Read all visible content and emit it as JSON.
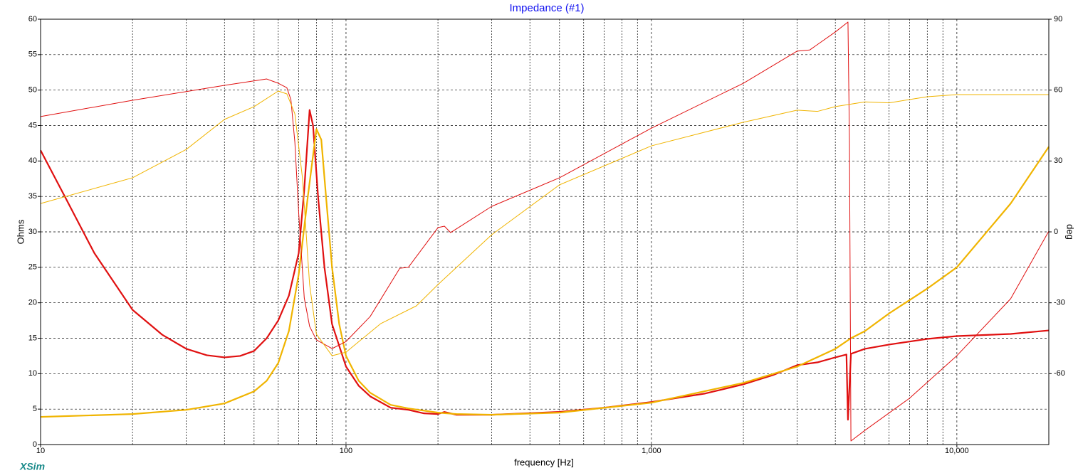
{
  "chart_data": {
    "type": "line",
    "title": "Impedance (#1)",
    "xlabel": "frequency [Hz]",
    "ylabel": "Ohms",
    "y2label": "deg",
    "logo": "XSim",
    "xscale": "log",
    "xlim": [
      10,
      20000
    ],
    "xticks": [
      10,
      100,
      {
        "value": 1000,
        "label": "1,000"
      },
      {
        "value": 10000,
        "label": "10,000"
      }
    ],
    "xminorticks": [
      20,
      30,
      40,
      50,
      60,
      70,
      80,
      90,
      200,
      300,
      400,
      500,
      600,
      700,
      800,
      900,
      2000,
      3000,
      4000,
      5000,
      6000,
      7000,
      8000,
      9000
    ],
    "ylim": [
      0,
      60
    ],
    "yticks": [
      0,
      5,
      10,
      15,
      20,
      25,
      30,
      35,
      40,
      45,
      50,
      55,
      60
    ],
    "y2lim": [
      -90,
      90
    ],
    "y2ticks": [
      -60,
      -30,
      0,
      30,
      60,
      90
    ],
    "grid": true,
    "series": [
      {
        "color": "#e01010",
        "width": 2.2,
        "x": [
          10,
          12,
          15,
          20,
          25,
          30,
          35,
          40,
          45,
          50,
          55,
          60,
          65,
          70,
          73,
          76,
          78,
          81,
          85,
          90,
          100,
          110,
          120,
          140,
          160,
          180,
          200,
          210,
          230,
          300,
          500,
          700,
          1000,
          1500,
          2000,
          2500,
          3000,
          3500,
          4000,
          4350,
          4400,
          4500,
          5000,
          6000,
          8000,
          10000,
          15000,
          20000
        ],
        "values": [
          41.5,
          35,
          27,
          19,
          15.5,
          13.5,
          12.6,
          12.3,
          12.5,
          13.2,
          15,
          17.5,
          21,
          27,
          36,
          47.2,
          45,
          35,
          25,
          17,
          11,
          8.3,
          6.8,
          5.2,
          4.9,
          4.4,
          4.3,
          4.6,
          4.2,
          4.2,
          4.6,
          5.2,
          6.0,
          7.2,
          8.5,
          9.8,
          11.2,
          11.6,
          12.3,
          12.7,
          3.5,
          12.8,
          13.5,
          14.1,
          14.9,
          15.3,
          15.6,
          16.1
        ]
      },
      {
        "color": "#f0b400",
        "width": 2.2,
        "x": [
          10,
          20,
          30,
          40,
          50,
          55,
          60,
          65,
          70,
          75,
          80,
          83,
          86,
          90,
          95,
          100,
          110,
          120,
          140,
          160,
          200,
          230,
          300,
          500,
          1000,
          2000,
          3000,
          4000,
          4500,
          5000,
          6000,
          8000,
          10000,
          15000,
          20000
        ],
        "values": [
          3.9,
          4.3,
          4.9,
          5.8,
          7.5,
          9,
          11.5,
          16,
          24,
          35,
          44.5,
          43,
          35,
          25,
          17,
          12.5,
          9,
          7.3,
          5.6,
          5.1,
          4.5,
          4.3,
          4.2,
          4.5,
          5.9,
          8.7,
          11,
          13.5,
          15,
          16,
          18.5,
          22,
          25,
          34,
          42
        ]
      },
      {
        "color": "#e01010",
        "width": 1,
        "axis": "y2",
        "x": [
          10,
          20,
          40,
          55,
          60,
          64,
          66,
          68,
          70,
          73,
          76,
          80,
          90,
          100,
          120,
          150,
          160,
          200,
          210,
          220,
          300,
          500,
          1000,
          2000,
          3000,
          3300,
          4000,
          4400,
          4450,
          4500,
          5000,
          7000,
          10000,
          15000,
          20000
        ],
        "values": [
          48.8,
          55.7,
          62,
          64.7,
          62.9,
          61,
          56,
          38,
          8,
          -28,
          -40,
          -45.7,
          -49.4,
          -46.4,
          -35.8,
          -15.4,
          -15,
          1.8,
          2.4,
          -0.3,
          10.8,
          22.9,
          43.9,
          62.9,
          76.5,
          77,
          84.6,
          88.8,
          38,
          -88.5,
          -84,
          -70.4,
          -52.4,
          -28.3,
          0.3
        ]
      },
      {
        "color": "#f0b400",
        "width": 1,
        "axis": "y2",
        "x": [
          10,
          20,
          30,
          40,
          50,
          60,
          64,
          68,
          72,
          76,
          80,
          90,
          100,
          130,
          170,
          200,
          300,
          500,
          1000,
          2000,
          3000,
          3500,
          4000,
          5000,
          6000,
          8000,
          10000,
          20000
        ],
        "values": [
          12,
          22.9,
          34.9,
          47.6,
          53,
          59.6,
          58.4,
          50,
          22.9,
          -22.3,
          -43.3,
          -52.4,
          -50.9,
          -38.8,
          -31.3,
          -22.3,
          -1.2,
          19.9,
          36.4,
          46.4,
          51.5,
          51,
          53,
          55,
          54.6,
          57.2,
          58.1,
          58.1
        ]
      }
    ]
  }
}
